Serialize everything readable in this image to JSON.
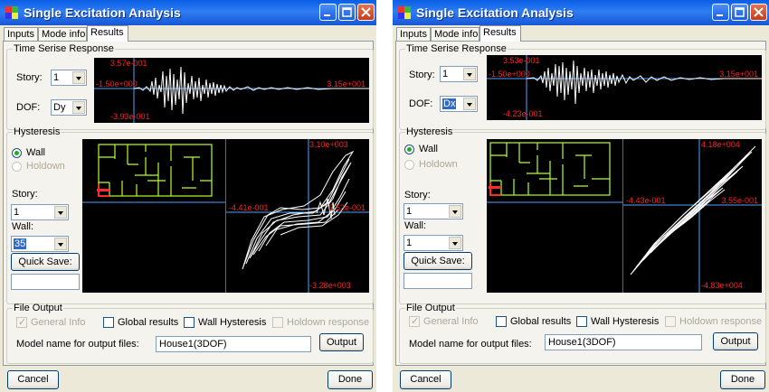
{
  "windows": [
    {
      "title": "Single Excitation Analysis",
      "tabs": [
        "Inputs",
        "Mode info",
        "Results"
      ],
      "time_series": {
        "legend": "Time Serise Response",
        "story_label": "Story:",
        "story_value": "1",
        "dof_label": "DOF:",
        "dof_value": "Dy",
        "plot": {
          "top": "3.57e-001",
          "left": "-1.50e+000",
          "right": "3.15e+001",
          "bottom": "-3.93e-001"
        }
      },
      "hysteresis": {
        "legend": "Hysteresis",
        "wall_option": "Wall",
        "holdown_option": "Holdown",
        "story_label": "Story:",
        "story_value": "1",
        "wall_label": "Wall:",
        "wall_value": "35",
        "quick_save": "Quick Save:",
        "quick_save_value": "",
        "plot": {
          "top": "3.10e+003",
          "left": "-4.41e-001",
          "right": "3.52e-001",
          "bottom": "-3.28e+003"
        }
      },
      "file_output": {
        "legend": "File Output",
        "general_info": "General Info",
        "global_results": "Global results",
        "wall_hysteresis": "Wall Hysteresis",
        "holdown_response": "Holdown response",
        "model_name_label": "Model name for output files:",
        "model_name_value": "House1(3DOF)",
        "output_button": "Output"
      },
      "cancel_button": "Cancel",
      "done_button": "Done"
    },
    {
      "title": "Single Excitation Analysis",
      "tabs": [
        "Inputs",
        "Mode info",
        "Results"
      ],
      "time_series": {
        "legend": "Time Serise Response",
        "story_label": "Story:",
        "story_value": "1",
        "dof_label": "DOF:",
        "dof_value": "Dx",
        "plot": {
          "top": "3.53e-001",
          "left": "-1.50e+000",
          "right": "3.15e+001",
          "bottom": "-4.23e-001"
        }
      },
      "hysteresis": {
        "legend": "Hysteresis",
        "wall_option": "Wall",
        "holdown_option": "Holdown",
        "story_label": "Story:",
        "story_value": "1",
        "wall_label": "Wall:",
        "wall_value": "1",
        "quick_save": "Quick Save:",
        "quick_save_value": "",
        "plot": {
          "top": "4.18e+004",
          "left": "-4.43e-001",
          "right": "3.55e-001",
          "bottom": "-4.83e+004"
        }
      },
      "file_output": {
        "legend": "File Output",
        "general_info": "General Info",
        "global_results": "Global results",
        "wall_hysteresis": "Wall Hysteresis",
        "holdown_response": "Holdown response",
        "model_name_label": "Model name for output files:",
        "model_name_value": "House1(3DOF)",
        "output_button": "Output"
      },
      "cancel_button": "Cancel",
      "done_button": "Done"
    }
  ],
  "colors": {
    "titlebar": "#0a5ee3",
    "plot_bg": "#000000",
    "plot_label": "#ff2020",
    "axis": "#4aa3ff",
    "trace": "#ffffff",
    "plan": "#b6ff2a"
  }
}
